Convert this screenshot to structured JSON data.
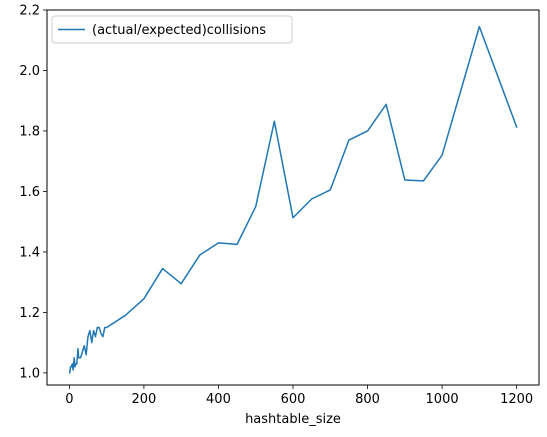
{
  "chart_data": {
    "type": "line",
    "title": "",
    "xlabel": "hashtable_size",
    "ylabel": "",
    "xlim": [
      -60,
      1260
    ],
    "ylim": [
      0.96,
      2.2
    ],
    "xticks": [
      0,
      200,
      400,
      600,
      800,
      1000,
      1200
    ],
    "xtick_labels": [
      "0",
      "200",
      "400",
      "600",
      "800",
      "1000",
      "1200"
    ],
    "yticks": [
      1.0,
      1.2,
      1.4,
      1.6,
      1.8,
      2.0,
      2.2
    ],
    "ytick_labels": [
      "1.0",
      "1.2",
      "1.4",
      "1.6",
      "1.8",
      "2.0",
      "2.2"
    ],
    "grid": false,
    "legend_position": "top-left",
    "series": [
      {
        "name": "(actual/expected)collisions",
        "color": "#1f77b4",
        "x": [
          1,
          3,
          5,
          8,
          10,
          13,
          15,
          18,
          20,
          23,
          25,
          30,
          35,
          40,
          45,
          50,
          55,
          60,
          65,
          70,
          75,
          80,
          85,
          90,
          95,
          100,
          150,
          200,
          250,
          300,
          350,
          400,
          450,
          500,
          550,
          600,
          650,
          700,
          750,
          800,
          850,
          900,
          950,
          1000,
          1100,
          1200
        ],
        "y": [
          1.0,
          1.02,
          1.02,
          1.03,
          1.01,
          1.05,
          1.02,
          1.03,
          1.03,
          1.08,
          1.05,
          1.05,
          1.07,
          1.09,
          1.06,
          1.12,
          1.14,
          1.1,
          1.14,
          1.12,
          1.15,
          1.15,
          1.13,
          1.12,
          1.15,
          1.15,
          1.19,
          1.245,
          1.345,
          1.295,
          1.39,
          1.43,
          1.425,
          1.55,
          1.832,
          1.513,
          1.575,
          1.605,
          1.77,
          1.8,
          1.888,
          1.638,
          1.635,
          1.72,
          2.145,
          1.813
        ]
      }
    ]
  }
}
